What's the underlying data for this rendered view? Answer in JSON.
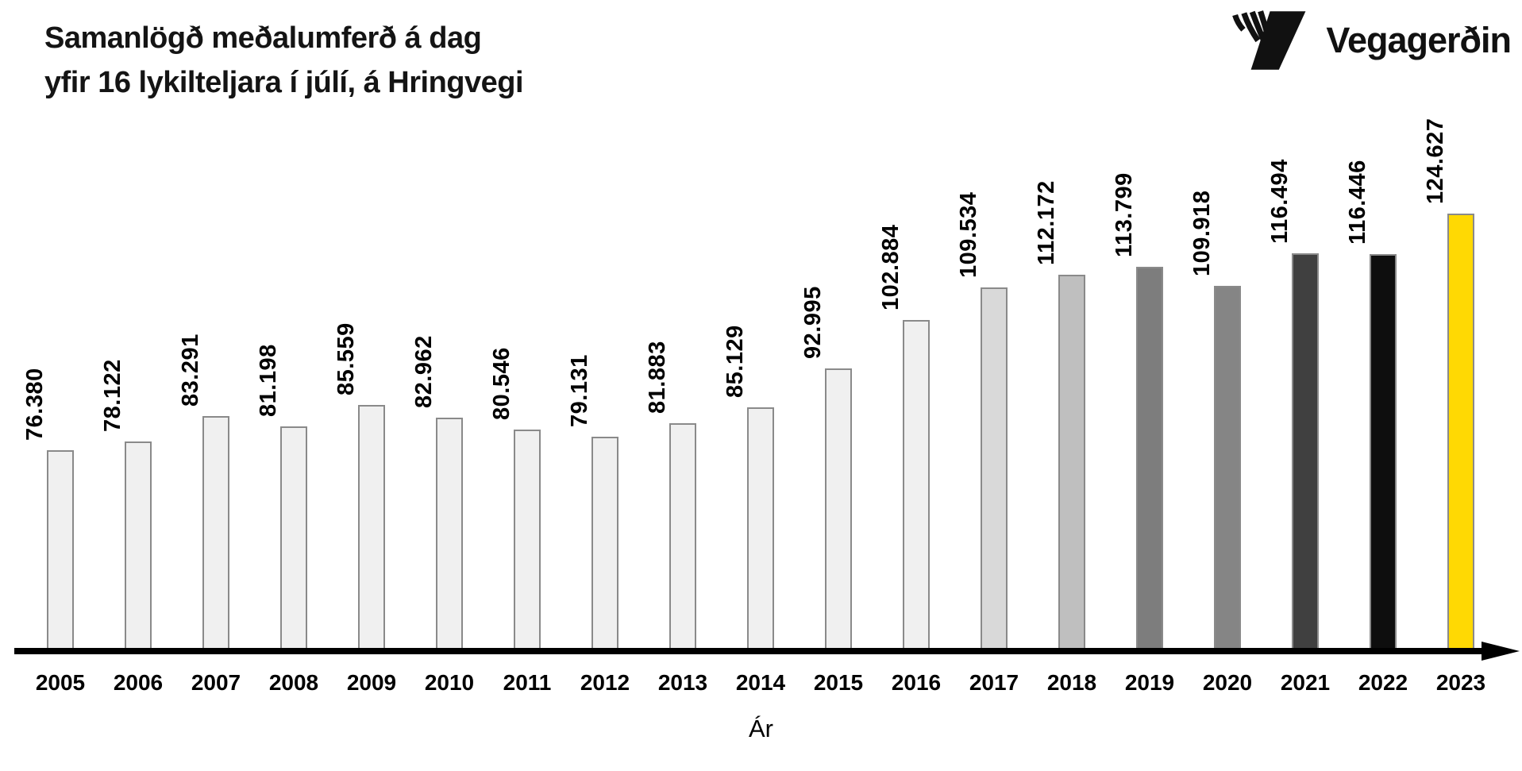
{
  "title": {
    "line1": "Samanlögð meðalumferð á dag",
    "line2": "yfir 16 lykilteljara í júlí, á Hringvegi"
  },
  "logo": {
    "text": "Vegagerðin",
    "icon": "vegagerdin-road-stripes-icon"
  },
  "chart_data": {
    "type": "bar",
    "title": "Samanlögð meðalumferð á dag yfir 16 lykilteljara í júlí, á Hringvegi",
    "xlabel": "Ár",
    "ylabel": "",
    "categories": [
      "2005",
      "2006",
      "2007",
      "2008",
      "2009",
      "2010",
      "2011",
      "2012",
      "2013",
      "2014",
      "2015",
      "2016",
      "2017",
      "2018",
      "2019",
      "2020",
      "2021",
      "2022",
      "2023"
    ],
    "values": [
      76380,
      78122,
      83291,
      81198,
      85559,
      82962,
      80546,
      79131,
      81883,
      85129,
      92995,
      102884,
      109534,
      112172,
      113799,
      109918,
      116494,
      116446,
      124627
    ],
    "value_labels": [
      "76.380",
      "78.122",
      "83.291",
      "81.198",
      "85.559",
      "82.962",
      "80.546",
      "79.131",
      "81.883",
      "85.129",
      "92.995",
      "102.884",
      "109.534",
      "112.172",
      "113.799",
      "109.918",
      "116.494",
      "116.446",
      "124.627"
    ],
    "bar_colors": [
      "#f0f0f0",
      "#f0f0f0",
      "#f0f0f0",
      "#f0f0f0",
      "#f0f0f0",
      "#f0f0f0",
      "#f0f0f0",
      "#f0f0f0",
      "#f0f0f0",
      "#f0f0f0",
      "#f0f0f0",
      "#f0f0f0",
      "#d9d9d9",
      "#bfbfbf",
      "#7d7d7d",
      "#858585",
      "#404040",
      "#0e0e0e",
      "#ffd903"
    ],
    "bar_border_color": "#8a8a8a",
    "axis_color": "#000000",
    "highlight_color": "#ffd903",
    "y_axis_implied_min": 35000,
    "y_axis_max": 125000,
    "value_label_rotation": 90,
    "grid": false,
    "legend": "none"
  }
}
